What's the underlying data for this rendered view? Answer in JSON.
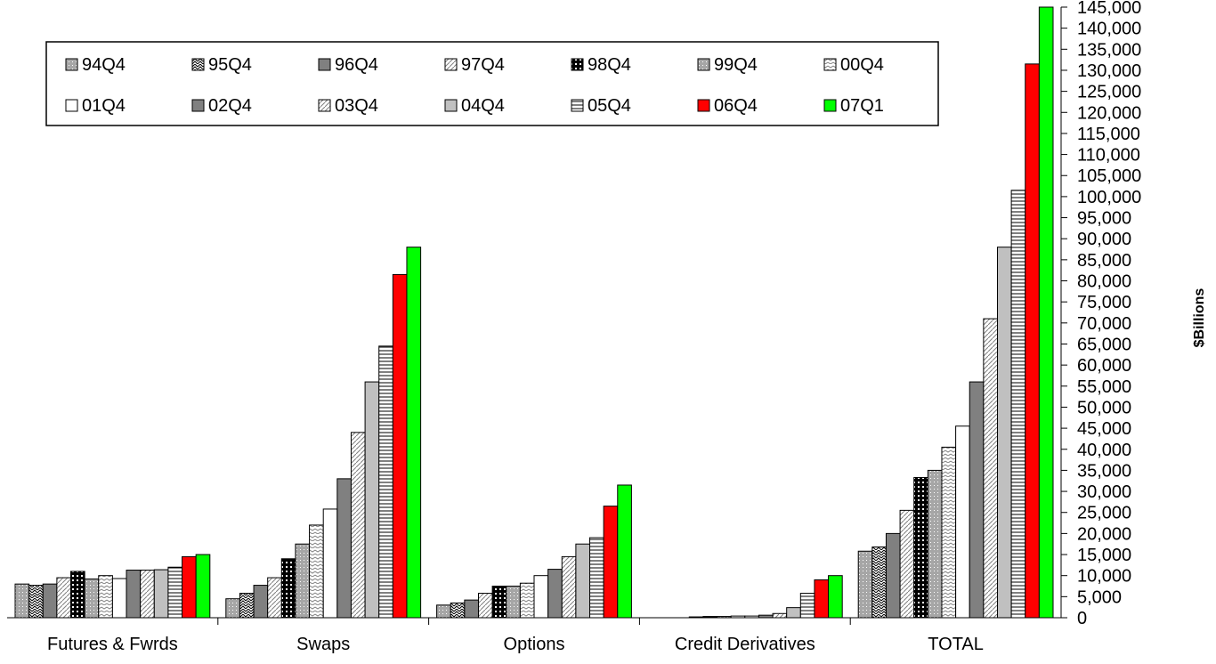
{
  "chart_data": {
    "type": "bar",
    "title": "",
    "xlabel": "",
    "ylabel": "$Billions",
    "y_axis_side": "right",
    "ylim": [
      0,
      145000
    ],
    "ytick_step": 5000,
    "yticks": [
      "0",
      "5,000",
      "10,000",
      "15,000",
      "20,000",
      "25,000",
      "30,000",
      "35,000",
      "40,000",
      "45,000",
      "50,000",
      "55,000",
      "60,000",
      "65,000",
      "70,000",
      "75,000",
      "80,000",
      "85,000",
      "90,000",
      "95,000",
      "100,000",
      "105,000",
      "110,000",
      "115,000",
      "120,000",
      "125,000",
      "130,000",
      "135,000",
      "140,000",
      "145,000"
    ],
    "grid": false,
    "legend_position": "top-left",
    "categories": [
      "Futures & Fwrds",
      "Swaps",
      "Options",
      "Credit Derivatives",
      "TOTAL"
    ],
    "series": [
      {
        "name": "94Q4",
        "values": [
          8000,
          4500,
          3000,
          0,
          15800
        ],
        "color": "#a6a6a6",
        "pattern": "dots"
      },
      {
        "name": "95Q4",
        "values": [
          7700,
          5800,
          3500,
          0,
          16800
        ],
        "color": "#ffffff",
        "pattern": "zigzag"
      },
      {
        "name": "96Q4",
        "values": [
          8000,
          7700,
          4200,
          0,
          20000
        ],
        "color": "#808080",
        "pattern": "solid"
      },
      {
        "name": "97Q4",
        "values": [
          9500,
          9500,
          5800,
          200,
          25500
        ],
        "color": "#ffffff",
        "pattern": "diag"
      },
      {
        "name": "98Q4",
        "values": [
          11000,
          14000,
          7500,
          300,
          33300
        ],
        "color": "#000000",
        "pattern": "grid"
      },
      {
        "name": "99Q4",
        "values": [
          9200,
          17500,
          7500,
          300,
          35000
        ],
        "color": "#c0c0c0",
        "pattern": "dots"
      },
      {
        "name": "00Q4",
        "values": [
          10000,
          22000,
          8200,
          400,
          40500
        ],
        "color": "#ffffff",
        "pattern": "wave"
      },
      {
        "name": "01Q4",
        "values": [
          9300,
          25800,
          10000,
          400,
          45500
        ],
        "color": "#ffffff",
        "pattern": "solid"
      },
      {
        "name": "02Q4",
        "values": [
          11300,
          33000,
          11500,
          600,
          56000
        ],
        "color": "#808080",
        "pattern": "solid"
      },
      {
        "name": "03Q4",
        "values": [
          11300,
          44000,
          14500,
          1000,
          71000
        ],
        "color": "#ffffff",
        "pattern": "diag"
      },
      {
        "name": "04Q4",
        "values": [
          11400,
          56000,
          17500,
          2400,
          88000
        ],
        "color": "#c0c0c0",
        "pattern": "solid"
      },
      {
        "name": "05Q4",
        "values": [
          12000,
          64500,
          19000,
          5800,
          101500
        ],
        "color": "#ffffff",
        "pattern": "hlines"
      },
      {
        "name": "06Q4",
        "values": [
          14500,
          81500,
          26500,
          9000,
          131500
        ],
        "color": "#ff0000",
        "pattern": "solid"
      },
      {
        "name": "07Q1",
        "values": [
          15000,
          88000,
          31500,
          10000,
          145000
        ],
        "color": "#00ff00",
        "pattern": "solid"
      }
    ]
  }
}
